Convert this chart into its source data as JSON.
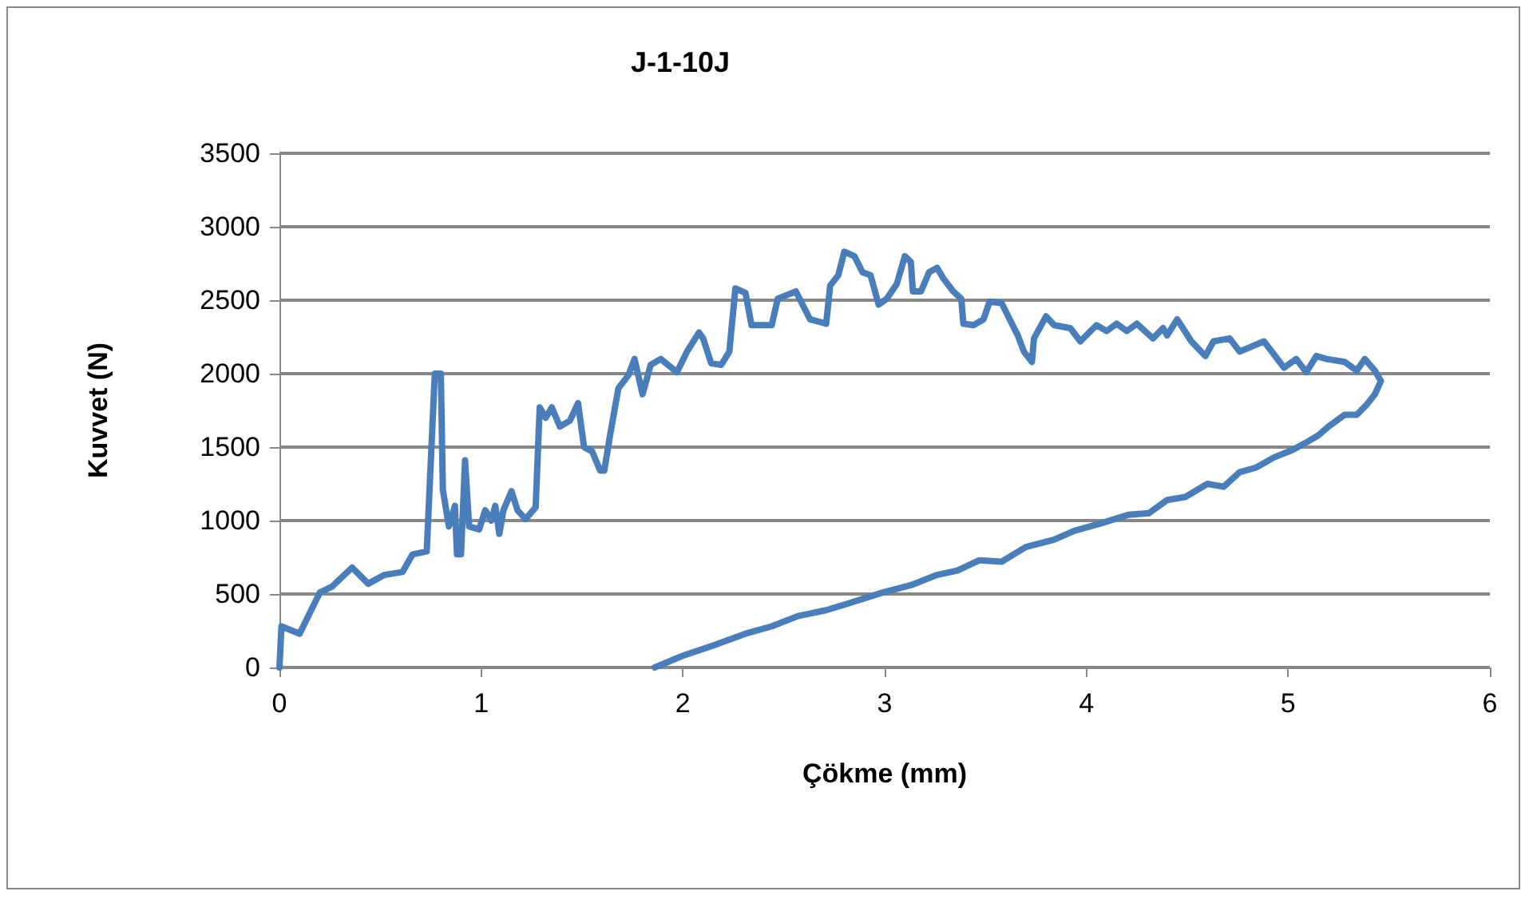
{
  "chart_data": {
    "type": "line",
    "title": "J-1-10J",
    "xlabel": "Çökme (mm)",
    "ylabel": "Kuvvet (N)",
    "xlim": [
      0,
      6
    ],
    "xticks": [
      0,
      1,
      2,
      3,
      4,
      5,
      6
    ],
    "ylim": [
      0,
      3500
    ],
    "yticks": [
      0,
      500,
      1000,
      1500,
      2000,
      2500,
      3000,
      3500
    ],
    "grid": "y",
    "marker": "none",
    "line_style": "solid",
    "series": [
      {
        "color": "#4a7ebb",
        "x": [
          0,
          0.01,
          0.1,
          0.2,
          0.26,
          0.36,
          0.44,
          0.52,
          0.61,
          0.66,
          0.73,
          0.77,
          0.8,
          0.81,
          0.84,
          0.87,
          0.88,
          0.9,
          0.92,
          0.94,
          0.99,
          1.02,
          1.05,
          1.07,
          1.09,
          1.11,
          1.15,
          1.18,
          1.22,
          1.27,
          1.29,
          1.32,
          1.35,
          1.39,
          1.44,
          1.48,
          1.51,
          1.55,
          1.59,
          1.61,
          1.64,
          1.68,
          1.73,
          1.76,
          1.8,
          1.84,
          1.89,
          1.97,
          2.02,
          2.08,
          2.1,
          2.14,
          2.19,
          2.23,
          2.26,
          2.31,
          2.34,
          2.44,
          2.47,
          2.56,
          2.63,
          2.71,
          2.73,
          2.77,
          2.8,
          2.85,
          2.89,
          2.93,
          2.97,
          3.01,
          3.06,
          3.1,
          3.13,
          3.14,
          3.18,
          3.22,
          3.26,
          3.29,
          3.34,
          3.38,
          3.39,
          3.44,
          3.49,
          3.52,
          3.58,
          3.62,
          3.66,
          3.69,
          3.73,
          3.74,
          3.8,
          3.84,
          3.92,
          3.97,
          4.05,
          4.1,
          4.15,
          4.2,
          4.25,
          4.33,
          4.38,
          4.4,
          4.45,
          4.52,
          4.59,
          4.63,
          4.71,
          4.76,
          4.88,
          4.98,
          5.04,
          5.09,
          5.14,
          5.19,
          5.28,
          5.34,
          5.38,
          5.43,
          5.46,
          5.43,
          5.39,
          5.34,
          5.28,
          5.2,
          5.15,
          5.1,
          5.02,
          4.93,
          4.84,
          4.76,
          4.68,
          4.6,
          4.49,
          4.4,
          4.31,
          4.21,
          4.07,
          3.94,
          3.84,
          3.7,
          3.58,
          3.47,
          3.36,
          3.26,
          3.13,
          2.99,
          2.83,
          2.71,
          2.57,
          2.44,
          2.31,
          2.15,
          2,
          1.86
        ],
        "values": [
          0,
          280,
          230,
          510,
          550,
          680,
          570,
          630,
          650,
          770,
          790,
          2000,
          2000,
          1210,
          960,
          1100,
          770,
          770,
          1410,
          960,
          940,
          1070,
          1000,
          1100,
          910,
          1070,
          1200,
          1070,
          1010,
          1090,
          1770,
          1700,
          1770,
          1640,
          1680,
          1800,
          1500,
          1470,
          1340,
          1340,
          1590,
          1900,
          1990,
          2100,
          1860,
          2060,
          2100,
          2010,
          2150,
          2280,
          2240,
          2070,
          2060,
          2150,
          2580,
          2550,
          2330,
          2330,
          2510,
          2560,
          2370,
          2340,
          2600,
          2670,
          2830,
          2800,
          2690,
          2670,
          2470,
          2510,
          2610,
          2800,
          2760,
          2560,
          2560,
          2690,
          2720,
          2650,
          2560,
          2510,
          2340,
          2330,
          2370,
          2490,
          2480,
          2370,
          2260,
          2150,
          2080,
          2240,
          2390,
          2330,
          2310,
          2220,
          2330,
          2290,
          2340,
          2290,
          2340,
          2240,
          2310,
          2260,
          2370,
          2220,
          2120,
          2220,
          2240,
          2150,
          2220,
          2040,
          2100,
          2010,
          2120,
          2100,
          2080,
          2020,
          2100,
          2020,
          1950,
          1860,
          1790,
          1720,
          1720,
          1640,
          1580,
          1540,
          1480,
          1430,
          1360,
          1330,
          1230,
          1250,
          1160,
          1140,
          1050,
          1040,
          980,
          930,
          870,
          820,
          720,
          730,
          660,
          630,
          560,
          510,
          440,
          390,
          350,
          280,
          230,
          150,
          80,
          0
        ]
      }
    ]
  }
}
